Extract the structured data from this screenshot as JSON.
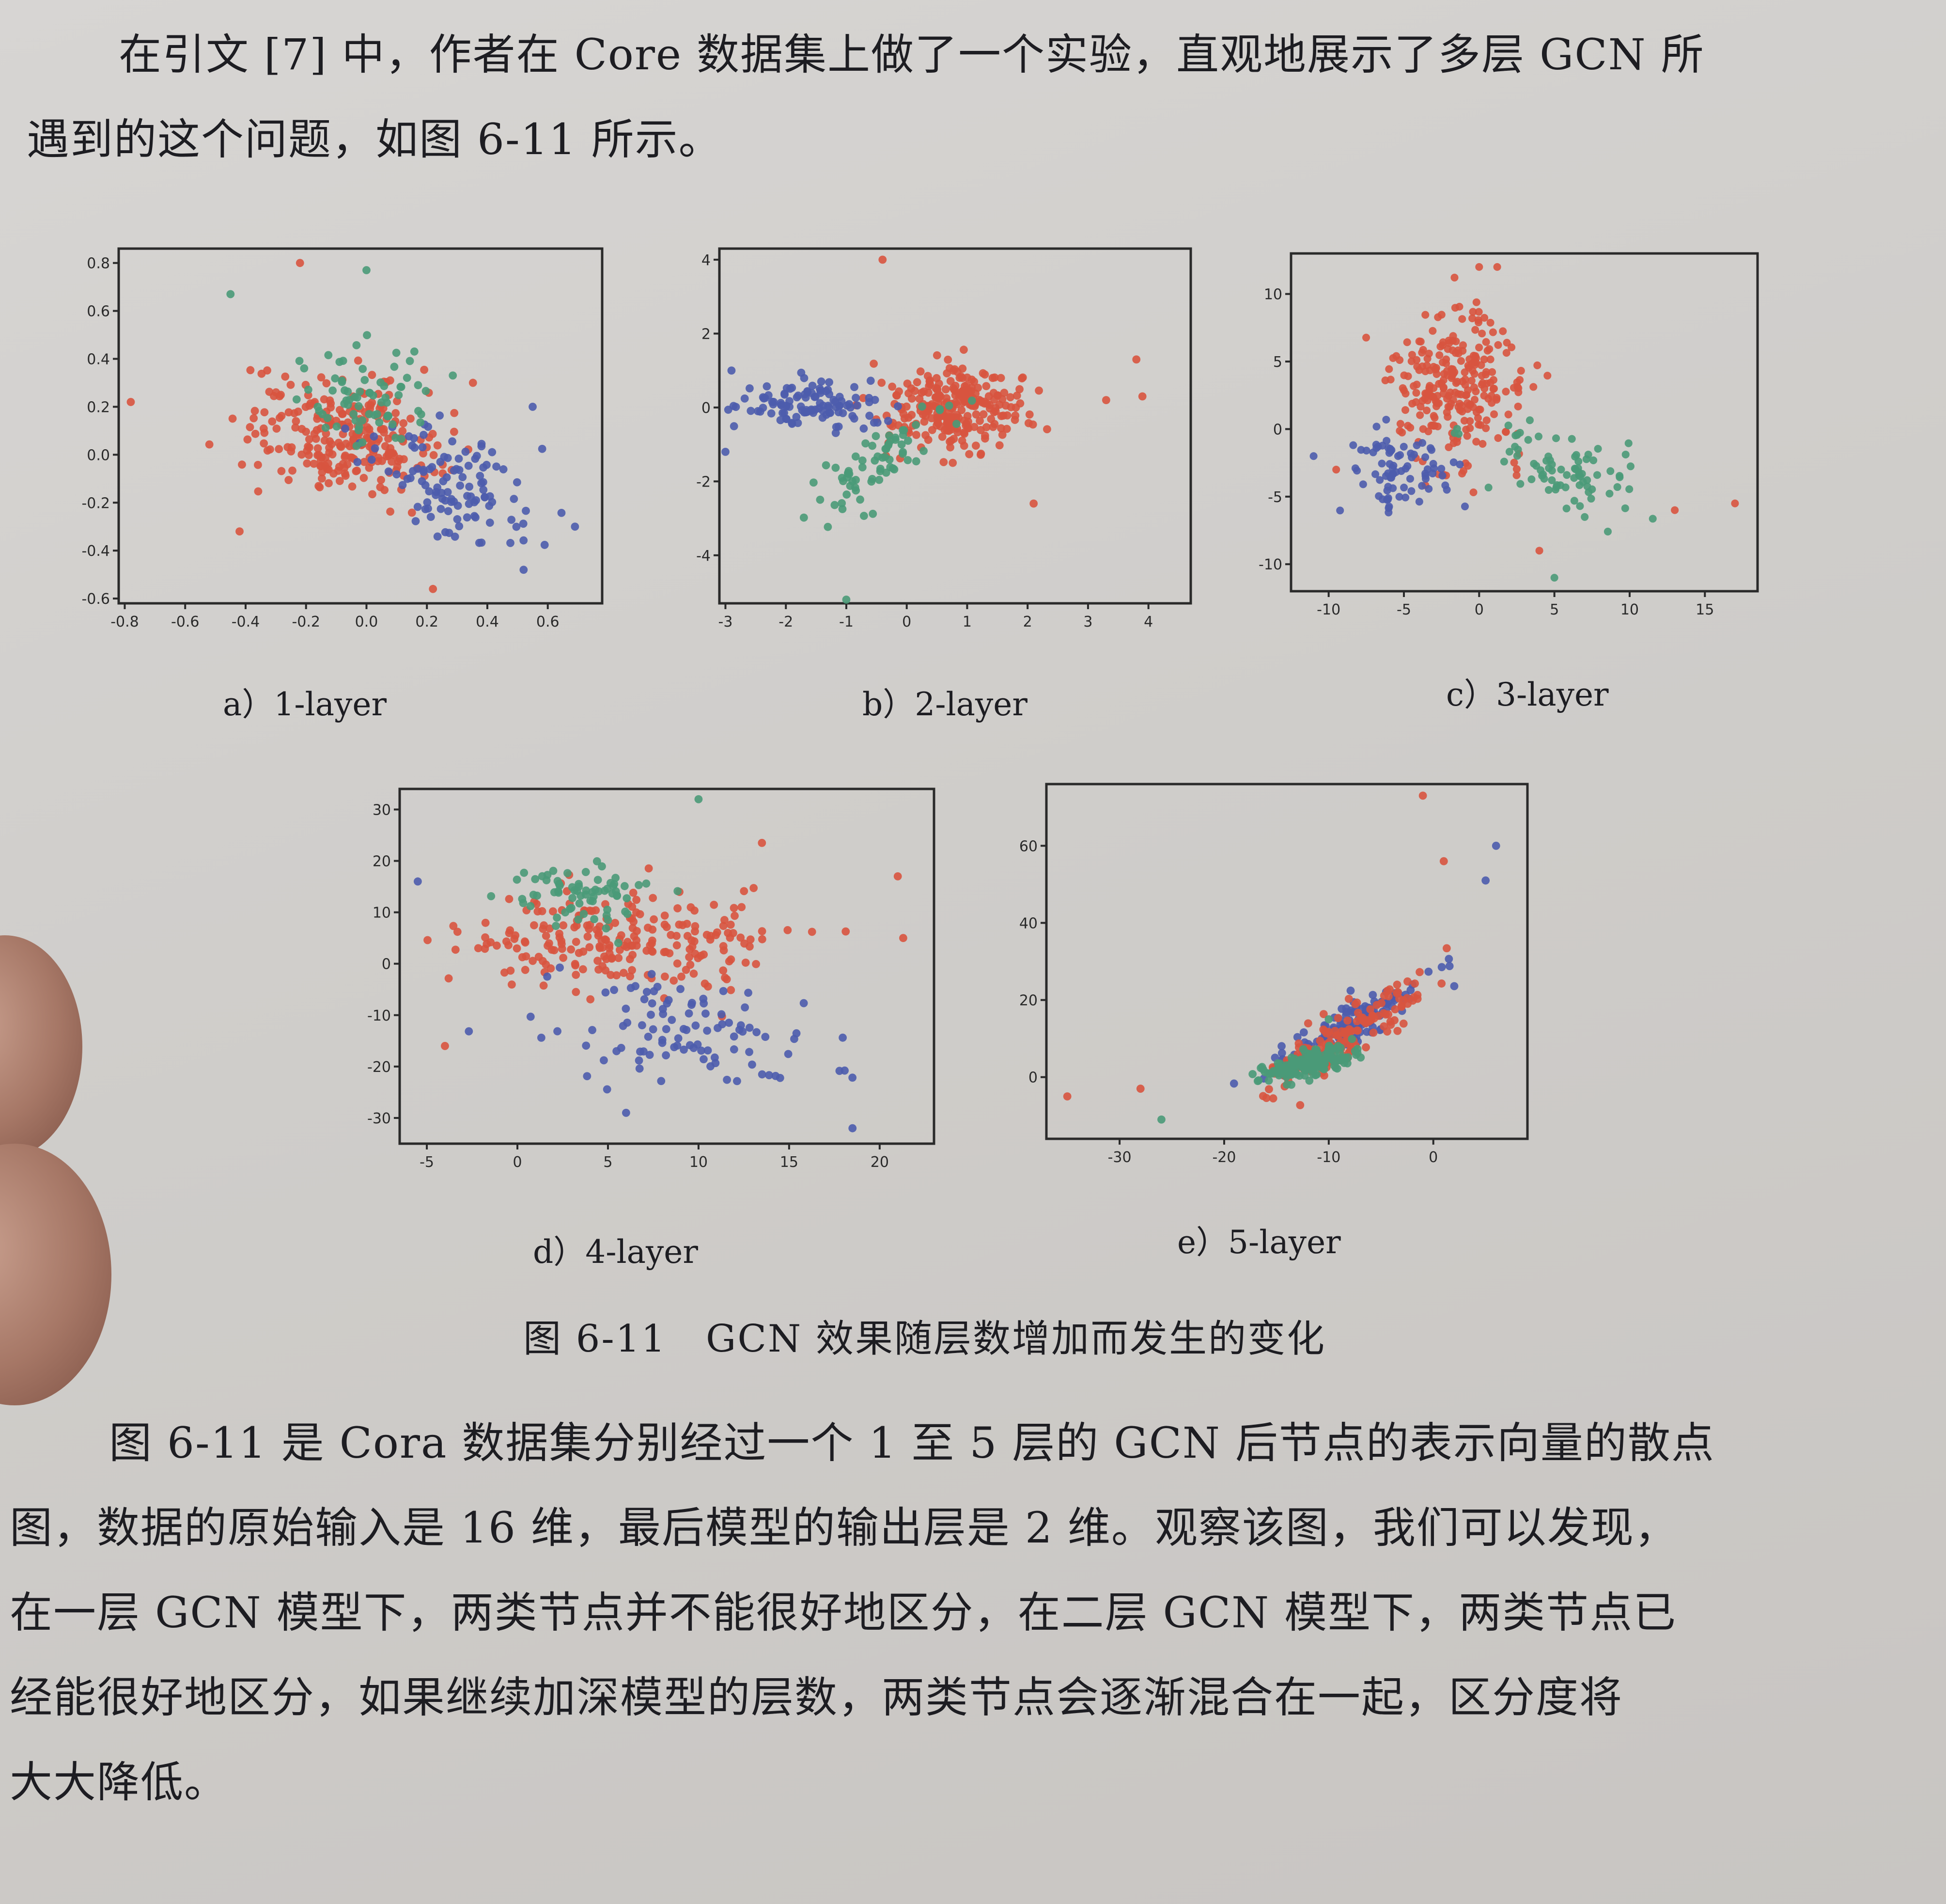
{
  "intro": {
    "line1": "在引文 [7] 中，作者在 Core 数据集上做了一个实验，直观地展示了多层 GCN 所",
    "line2": "遇到的这个问题，如图 6-11 所示。"
  },
  "figure": {
    "title": "图 6-11　GCN 效果随层数增加而发生的变化",
    "subplots": [
      {
        "caption": "a）1-layer",
        "xticks": [
          "-0.8",
          "-0.6",
          "-0.4",
          "-0.2",
          "0.0",
          "0.2",
          "0.4",
          "0.6"
        ],
        "yticks": [
          "0.8",
          "0.6",
          "0.4",
          "0.2",
          "0.0",
          "-0.2",
          "-0.4",
          "-0.6"
        ]
      },
      {
        "caption": "b）2-layer",
        "xticks": [
          "-3",
          "-2",
          "-1",
          "0",
          "1",
          "2",
          "3",
          "4"
        ],
        "yticks": [
          "4",
          "2",
          "0",
          "-2",
          "-4"
        ]
      },
      {
        "caption": "c）3-layer",
        "xticks": [
          "-10",
          "-5",
          "0",
          "5",
          "10",
          "15"
        ],
        "yticks": [
          "10",
          "5",
          "0",
          "-5",
          "-10"
        ]
      },
      {
        "caption": "d）4-layer",
        "xticks": [
          "-5",
          "0",
          "5",
          "10",
          "15",
          "20"
        ],
        "yticks": [
          "30",
          "20",
          "10",
          "0",
          "-10",
          "-20",
          "-30"
        ]
      },
      {
        "caption": "e）5-layer",
        "xticks": [
          "-30",
          "-20",
          "-10",
          "0"
        ],
        "yticks": [
          "60",
          "40",
          "20",
          "0"
        ]
      }
    ]
  },
  "colors": {
    "red": "#d8543f",
    "blue": "#4c5cad",
    "green": "#4a9a78"
  },
  "chart_data": [
    {
      "type": "scatter",
      "xlim": [
        -0.82,
        0.78
      ],
      "ylim": [
        -0.62,
        0.86
      ],
      "clusters": [
        {
          "color": "red",
          "n": 260,
          "cx": -0.08,
          "cy": 0.08,
          "sx": 0.16,
          "sy": 0.12,
          "corr": -0.2
        },
        {
          "color": "blue",
          "n": 110,
          "cx": 0.3,
          "cy": -0.12,
          "sx": 0.14,
          "sy": 0.14,
          "corr": -0.5
        },
        {
          "color": "green",
          "n": 70,
          "cx": -0.02,
          "cy": 0.25,
          "sx": 0.12,
          "sy": 0.1,
          "corr": -0.2
        }
      ],
      "points": [
        {
          "color": "red",
          "x": -0.22,
          "y": 0.8
        },
        {
          "color": "green",
          "x": 0.0,
          "y": 0.77
        },
        {
          "color": "green",
          "x": -0.45,
          "y": 0.67
        },
        {
          "color": "red",
          "x": -0.78,
          "y": 0.22
        },
        {
          "color": "blue",
          "x": 0.69,
          "y": -0.3
        },
        {
          "color": "red",
          "x": 0.22,
          "y": -0.56
        },
        {
          "color": "red",
          "x": -0.42,
          "y": -0.32
        },
        {
          "color": "blue",
          "x": 0.52,
          "y": -0.48
        },
        {
          "color": "blue",
          "x": 0.55,
          "y": 0.2
        }
      ]
    },
    {
      "type": "scatter",
      "xlim": [
        -3.1,
        4.7
      ],
      "ylim": [
        -5.3,
        4.3
      ],
      "clusters": [
        {
          "color": "red",
          "n": 260,
          "cx": 0.8,
          "cy": 0.0,
          "sx": 0.55,
          "sy": 0.55,
          "corr": 0.1
        },
        {
          "color": "blue",
          "n": 110,
          "cx": -1.6,
          "cy": 0.1,
          "sx": 0.6,
          "sy": 0.35,
          "corr": 0.0
        },
        {
          "color": "green",
          "n": 70,
          "cx": -0.5,
          "cy": -1.4,
          "sx": 0.5,
          "sy": 0.7,
          "corr": 0.7
        }
      ],
      "points": [
        {
          "color": "red",
          "x": -0.4,
          "y": 4.0
        },
        {
          "color": "green",
          "x": -1.0,
          "y": -5.2
        },
        {
          "color": "red",
          "x": 3.8,
          "y": 1.3
        },
        {
          "color": "red",
          "x": 3.9,
          "y": 0.3
        },
        {
          "color": "red",
          "x": 3.3,
          "y": 0.2
        },
        {
          "color": "red",
          "x": 2.1,
          "y": -2.6
        },
        {
          "color": "blue",
          "x": -2.9,
          "y": 1.0
        },
        {
          "color": "blue",
          "x": -3.0,
          "y": -1.2
        }
      ]
    },
    {
      "type": "scatter",
      "xlim": [
        -12.5,
        18.5
      ],
      "ylim": [
        -12,
        13
      ],
      "clusters": [
        {
          "color": "red",
          "n": 260,
          "cx": -1.5,
          "cy": 3.0,
          "sx": 2.2,
          "sy": 3.0,
          "corr": 0.0
        },
        {
          "color": "blue",
          "n": 80,
          "cx": -5.0,
          "cy": -3.0,
          "sx": 2.0,
          "sy": 1.5,
          "corr": 0.0
        },
        {
          "color": "green",
          "n": 80,
          "cx": 5.5,
          "cy": -3.0,
          "sx": 2.5,
          "sy": 1.8,
          "corr": -0.5
        }
      ],
      "points": [
        {
          "color": "red",
          "x": 0,
          "y": 12
        },
        {
          "color": "red",
          "x": 1.2,
          "y": 12
        },
        {
          "color": "green",
          "x": 5,
          "y": -11
        },
        {
          "color": "red",
          "x": 4,
          "y": -9
        },
        {
          "color": "red",
          "x": 13,
          "y": -6
        },
        {
          "color": "red",
          "x": 17,
          "y": -5.5
        },
        {
          "color": "blue",
          "x": -11,
          "y": -2
        },
        {
          "color": "red",
          "x": -9.5,
          "y": -3
        }
      ]
    },
    {
      "type": "scatter",
      "xlim": [
        -6.5,
        23
      ],
      "ylim": [
        -35,
        34
      ],
      "clusters": [
        {
          "color": "red",
          "n": 230,
          "cx": 6.0,
          "cy": 5.0,
          "sx": 4.5,
          "sy": 5.0,
          "corr": 0.0
        },
        {
          "color": "blue",
          "n": 100,
          "cx": 9.0,
          "cy": -14.0,
          "sx": 3.5,
          "sy": 6.0,
          "corr": -0.3
        },
        {
          "color": "green",
          "n": 70,
          "cx": 3.5,
          "cy": 13.0,
          "sx": 2.0,
          "sy": 3.0,
          "corr": 0.0
        }
      ],
      "points": [
        {
          "color": "green",
          "x": 10,
          "y": 32
        },
        {
          "color": "red",
          "x": 13.5,
          "y": 23.5
        },
        {
          "color": "blue",
          "x": 18.5,
          "y": -32
        },
        {
          "color": "red",
          "x": 21,
          "y": 17
        },
        {
          "color": "red",
          "x": 21.3,
          "y": 5
        },
        {
          "color": "red",
          "x": -4,
          "y": -16
        },
        {
          "color": "blue",
          "x": -5.5,
          "y": 16
        },
        {
          "color": "blue",
          "x": 6,
          "y": -29
        }
      ]
    },
    {
      "type": "scatter",
      "xlim": [
        -37,
        9
      ],
      "ylim": [
        -16,
        76
      ],
      "clusters": [
        {
          "color": "blue",
          "n": 150,
          "cx": -8.0,
          "cy": 13.0,
          "sx": 3.5,
          "sy": 6.0,
          "corr": 0.9
        },
        {
          "color": "red",
          "n": 170,
          "cx": -9.0,
          "cy": 10.0,
          "sx": 3.8,
          "sy": 7.0,
          "corr": 0.9
        },
        {
          "color": "green",
          "n": 160,
          "cx": -12.0,
          "cy": 3.5,
          "sx": 2.0,
          "sy": 2.0,
          "corr": 0.6
        }
      ],
      "points": [
        {
          "color": "red",
          "x": -1,
          "y": 73
        },
        {
          "color": "blue",
          "x": 6,
          "y": 60
        },
        {
          "color": "red",
          "x": 1,
          "y": 56
        },
        {
          "color": "blue",
          "x": 5,
          "y": 51
        },
        {
          "color": "red",
          "x": -35,
          "y": -5
        },
        {
          "color": "red",
          "x": -28,
          "y": -3
        },
        {
          "color": "green",
          "x": -26,
          "y": -11
        },
        {
          "color": "green",
          "x": -10,
          "y": 15
        }
      ]
    }
  ],
  "body": {
    "line1": "图 6-11 是 Cora 数据集分别经过一个 1 至 5 层的 GCN 后节点的表示向量的散点",
    "line2": "图，数据的原始输入是 16 维，最后模型的输出层是 2 维。观察该图，我们可以发现，",
    "line3": "在一层 GCN 模型下，两类节点并不能很好地区分，在二层 GCN 模型下，两类节点已",
    "line4": "经能很好地区分，如果继续加深模型的层数，两类节点会逐渐混合在一起，区分度将",
    "line5": "大大降低。"
  }
}
